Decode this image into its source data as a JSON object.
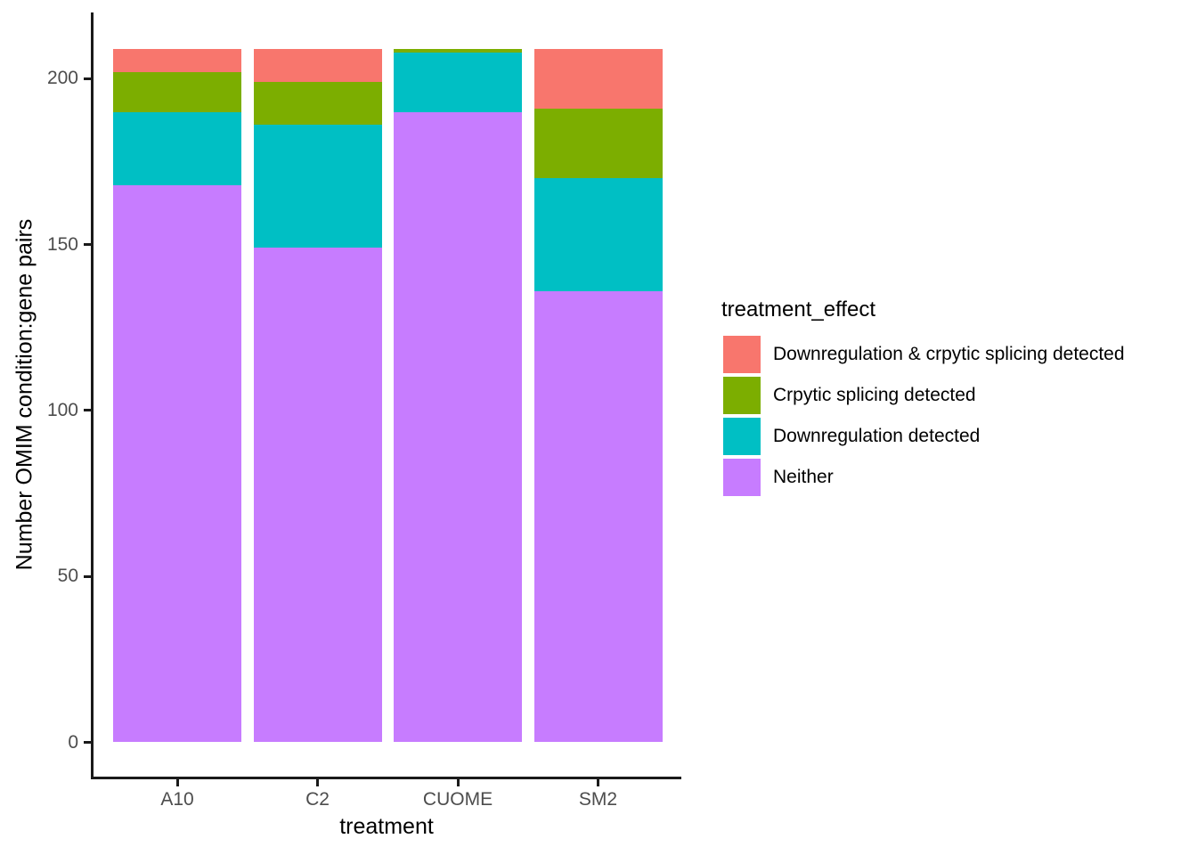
{
  "chart_data": {
    "type": "bar",
    "stacked": true,
    "title": "",
    "xlabel": "treatment",
    "ylabel": "Number OMIM condition:gene pairs",
    "legend_title": "treatment_effect",
    "legend_position": "right",
    "grid": false,
    "categories": [
      "A10",
      "C2",
      "CUOME",
      "SM2"
    ],
    "yticks": [
      0,
      50,
      100,
      150,
      200
    ],
    "ylim": [
      0,
      220
    ],
    "series": [
      {
        "name": "Downregulation & crpytic splicing detected",
        "color": "#F8766D",
        "values": [
          7,
          10,
          0,
          18
        ]
      },
      {
        "name": "Crpytic splicing detected",
        "color": "#7CAE00",
        "values": [
          12,
          13,
          1,
          21
        ]
      },
      {
        "name": "Downregulation detected",
        "color": "#00BFC4",
        "values": [
          22,
          37,
          18,
          34
        ]
      },
      {
        "name": "Neither",
        "color": "#C77CFF",
        "values": [
          168,
          149,
          190,
          136
        ]
      }
    ],
    "stack_order_bottom_to_top": [
      "Neither",
      "Downregulation detected",
      "Crpytic splicing detected",
      "Downregulation & crpytic splicing detected"
    ],
    "bar_totals": [
      209,
      209,
      209,
      209
    ]
  }
}
